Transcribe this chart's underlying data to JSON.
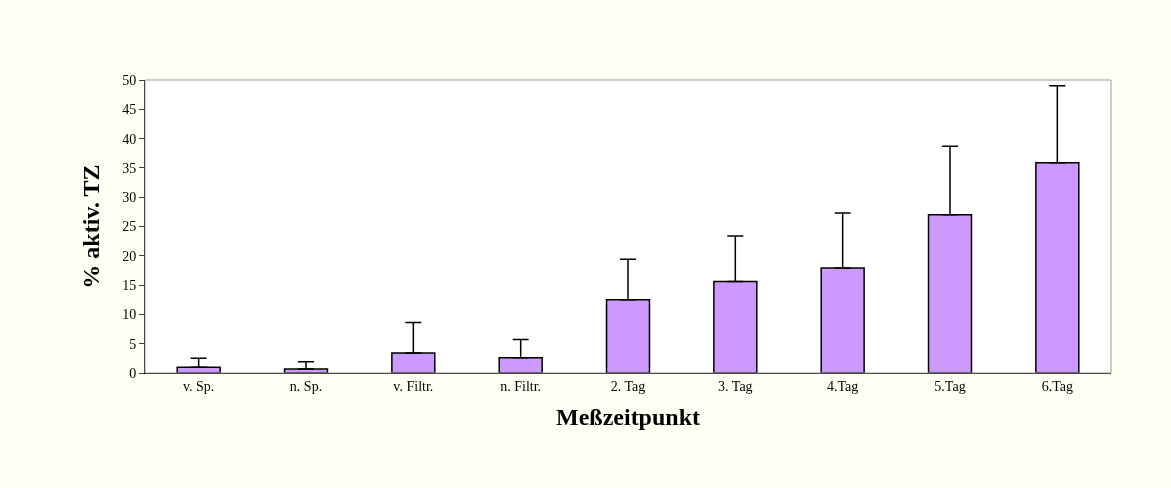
{
  "chart_data": {
    "type": "bar",
    "xlabel": "Meßzeitpunkt",
    "ylabel": "% aktiv. TZ",
    "categories": [
      "v. Sp.",
      "n. Sp.",
      "v. Filtr.",
      "n. Filtr.",
      "2. Tag",
      "3. Tag",
      "4.Tag",
      "5.Tag",
      "6.Tag"
    ],
    "values": [
      1.0,
      0.7,
      3.4,
      2.6,
      12.5,
      15.6,
      17.9,
      27.0,
      35.9
    ],
    "errors": [
      [
        1.0,
        2.5
      ],
      [
        0.7,
        1.9
      ],
      [
        3.4,
        8.6
      ],
      [
        2.6,
        5.7
      ],
      [
        12.5,
        19.4
      ],
      [
        15.6,
        23.4
      ],
      [
        17.9,
        27.3
      ],
      [
        27.0,
        38.7
      ],
      [
        35.9,
        49.0
      ]
    ],
    "color": "#cc99ff",
    "ylim": [
      0,
      50
    ],
    "yticks": [
      0,
      5,
      10,
      15,
      20,
      25,
      30,
      35,
      40,
      45,
      50
    ]
  }
}
